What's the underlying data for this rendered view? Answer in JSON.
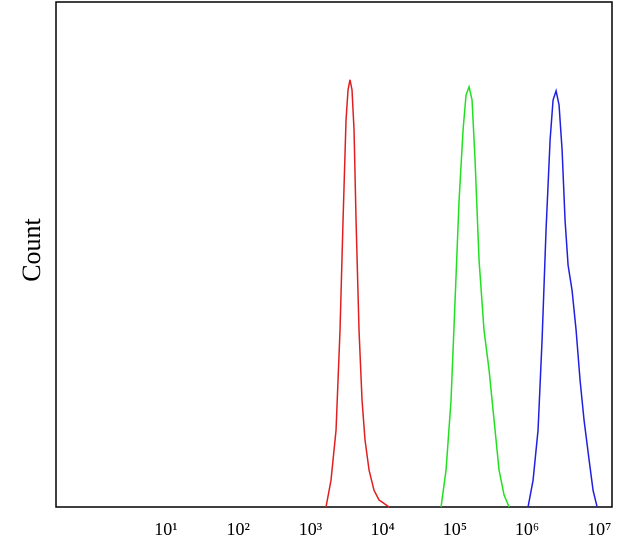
{
  "chart_data": {
    "type": "line",
    "y_label": "Count",
    "x_scale": "log",
    "xlim": [
      0.3,
      15000000
    ],
    "ylim": [
      0,
      100
    ],
    "xticks": [
      {
        "value": 10,
        "label": "10¹"
      },
      {
        "value": 100,
        "label": "10²"
      },
      {
        "value": 1000,
        "label": "10³"
      },
      {
        "value": 10000,
        "label": "10⁴"
      },
      {
        "value": 100000,
        "label": "10⁵"
      },
      {
        "value": 1000000,
        "label": "10⁶"
      },
      {
        "value": 10000000,
        "label": "10⁷"
      }
    ],
    "series": [
      {
        "color": "#e02020",
        "x": [
          1644,
          1928,
          2264,
          2570,
          2831,
          3112,
          3319,
          3532,
          3767,
          4018,
          4285,
          4710,
          5188,
          5702,
          6486,
          7603,
          8913,
          12270
        ],
        "values": [
          0,
          5.3,
          15.2,
          35.0,
          56.8,
          76.6,
          82.6,
          84.6,
          82.6,
          74.7,
          56.8,
          35.0,
          21.1,
          13.3,
          7.3,
          3.3,
          1.4,
          0
        ]
      },
      {
        "color": "#20e020",
        "x": [
          64420,
          75510,
          88510,
          100700,
          114300,
          130000,
          142900,
          157400,
          173000,
          190500,
          216300,
          253500,
          297900,
          349200,
          409300,
          479800,
          563600
        ],
        "values": [
          0,
          7.3,
          21.1,
          40.9,
          60.6,
          74.7,
          81.6,
          83.2,
          80.6,
          68.7,
          48.9,
          35.0,
          27.1,
          17.2,
          7.3,
          2.4,
          0
        ]
      },
      {
        "color": "#2020e0",
        "x": [
          1032000,
          1211000,
          1419000,
          1614000,
          1832000,
          2084000,
          2291000,
          2523000,
          2773000,
          3055000,
          3357000,
          3698000,
          4198000,
          4775000,
          5420000,
          6152000,
          7228000,
          8204000,
          9333000
        ],
        "values": [
          0,
          5.3,
          15.2,
          33.1,
          54.9,
          72.7,
          80.6,
          82.4,
          79.6,
          70.7,
          56.8,
          47.9,
          42.9,
          35.0,
          25.1,
          17.2,
          9.3,
          3.3,
          0
        ]
      }
    ]
  }
}
